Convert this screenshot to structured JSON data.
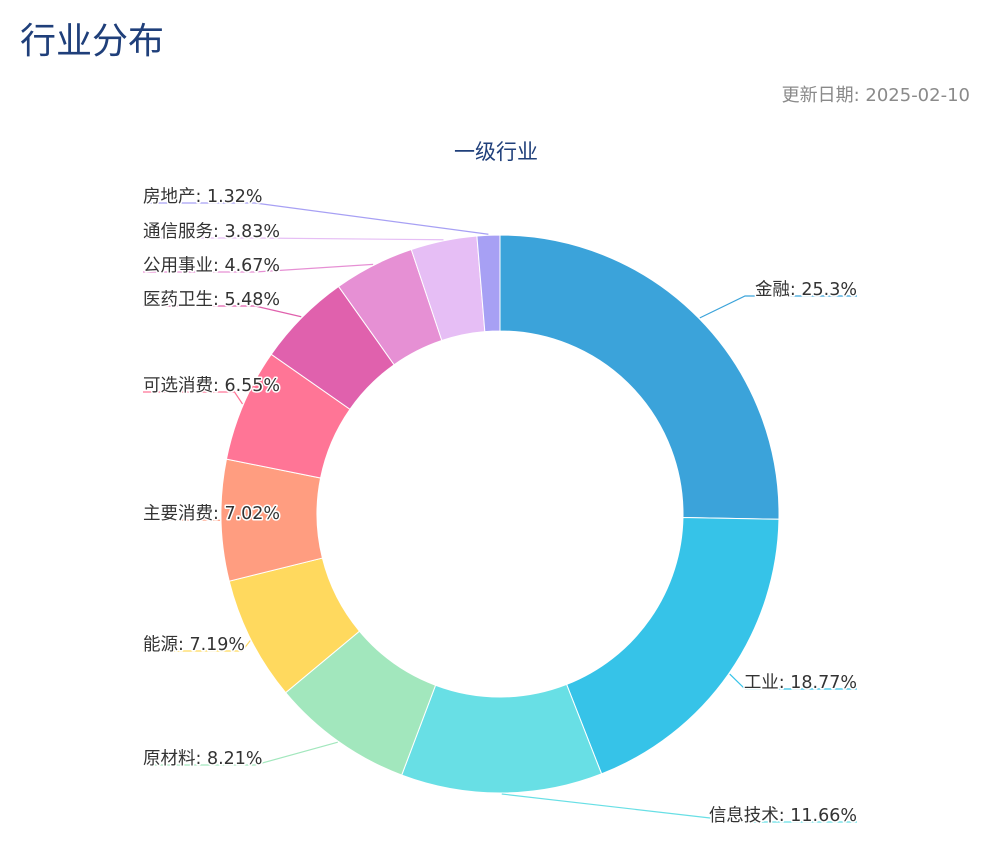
{
  "header": {
    "title": "行业分布",
    "update_label": "更新日期: 2025-02-10"
  },
  "chart_data": {
    "type": "pie",
    "style": "donut",
    "title": "一级行业",
    "label_format": "{name}: {value}%",
    "slices": [
      {
        "name": "金融",
        "value": 25.3,
        "color": "#3ba3da"
      },
      {
        "name": "工业",
        "value": 18.77,
        "color": "#36c3e8"
      },
      {
        "name": "信息技术",
        "value": 11.66,
        "color": "#68dfe5"
      },
      {
        "name": "原材料",
        "value": 8.21,
        "color": "#a2e7bd"
      },
      {
        "name": "能源",
        "value": 7.19,
        "color": "#ffd95e"
      },
      {
        "name": "主要消费",
        "value": 7.02,
        "color": "#ff9d80"
      },
      {
        "name": "可选消费",
        "value": 6.55,
        "color": "#ff7596"
      },
      {
        "name": "医药卫生",
        "value": 5.48,
        "color": "#e061ad"
      },
      {
        "name": "公用事业",
        "value": 4.67,
        "color": "#e690d4"
      },
      {
        "name": "通信服务",
        "value": 3.83,
        "color": "#e6bef5"
      },
      {
        "name": "房地产",
        "value": 1.32,
        "color": "#a7a0f4"
      }
    ]
  }
}
